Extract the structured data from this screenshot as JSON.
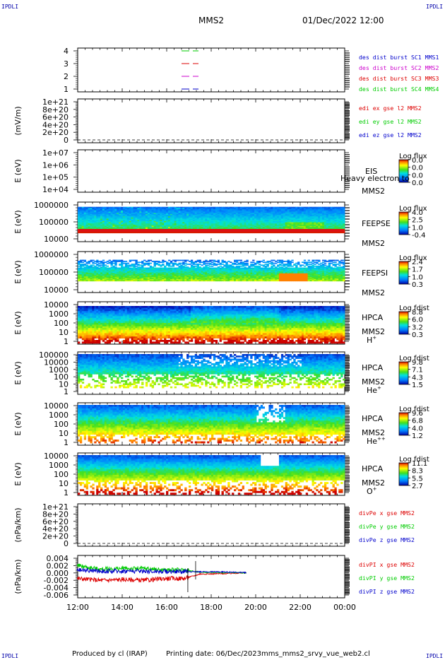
{
  "header": {
    "corner_left_top": "IPDLI",
    "corner_right_top": "IPDLI",
    "corner_left_bottom": "IPDLI",
    "corner_right_bottom": "IPDLI",
    "spacecraft": "MMS2",
    "date": "01/Dec/2022 12:00"
  },
  "footer": {
    "produced_by": "Produced by cl (IRAP)",
    "printing_date": "Printing date: 06/Dec/2023",
    "file": "mms_mms2_srvy_vue_web2.cl"
  },
  "colors": {
    "mms1": "#0000cc",
    "mms2": "#cc00cc",
    "mms3": "#dd0000",
    "mms4": "#00cc00",
    "x_comp": "#dd0000",
    "y_comp": "#00cc00",
    "z_comp": "#0000cc"
  },
  "chart_data": [
    {
      "id": "panel_burst",
      "type": "line",
      "ylabel": "",
      "yticks": [
        "4",
        "3",
        "2",
        "1"
      ],
      "ylim": [
        0.5,
        4.5
      ],
      "legend": [
        {
          "name": "des dist burst SC1 MMS1",
          "color": "#0000cc"
        },
        {
          "name": "des dist burst SC2 MMS2",
          "color": "#cc00cc"
        },
        {
          "name": "des dist burst SC3 MMS3",
          "color": "#dd0000"
        },
        {
          "name": "des dist burst SC4 MMS4",
          "color": "#00cc00"
        }
      ],
      "series": [
        {
          "name": "des dist burst SC4 MMS4",
          "level": 4,
          "x": [
            0,
            0
          ],
          "values": [
            4,
            4
          ]
        },
        {
          "name": "des dist burst SC3 MMS3",
          "level": 3,
          "x": [
            0,
            0
          ],
          "values": [
            3,
            3
          ]
        },
        {
          "name": "des dist burst SC2 MMS2",
          "level": 2,
          "x": [
            0,
            0
          ],
          "values": [
            2,
            2
          ]
        },
        {
          "name": "des dist burst SC1 MMS1",
          "level": 1,
          "x": [
            0,
            0
          ],
          "values": [
            1,
            1
          ]
        }
      ]
    },
    {
      "id": "panel_edi",
      "type": "line",
      "ylabel": "(mV/m)",
      "yticks": [
        "1e+21",
        "8e+20",
        "6e+20",
        "4e+20",
        "2e+20",
        "0"
      ],
      "ylim": [
        0,
        1e+21
      ],
      "legend": [
        {
          "name": "edi ex gse l2 MMS2",
          "color": "#dd0000"
        },
        {
          "name": "edi ey gse l2 MMS2",
          "color": "#00cc00"
        },
        {
          "name": "edi ez gse l2 MMS2",
          "color": "#0000cc"
        }
      ],
      "zero_line": true
    },
    {
      "id": "panel_eis",
      "type": "heatmap",
      "ylabel": "E (eV)",
      "yticks": [
        "1e+07",
        "1e+06",
        "1e+05",
        "1e+04"
      ],
      "ylim": [
        10000,
        10000000
      ],
      "yscale": "log",
      "side_labels": [
        "EIS",
        "MMS2"
      ],
      "overlay_text": "Heavy electron to",
      "colorbar": {
        "title": "Log flux",
        "ticks": [
          "0.0",
          "0.0",
          "0.0",
          "0.0"
        ]
      }
    },
    {
      "id": "panel_feepse",
      "type": "heatmap",
      "ylabel": "E (eV)",
      "yticks": [
        "1000000",
        "100000",
        "10000"
      ],
      "ylim": [
        10000,
        1000000
      ],
      "yscale": "log",
      "side_labels": [
        "FEEPSE",
        "MMS2"
      ],
      "colorbar": {
        "title": "Log flux",
        "ticks": [
          "4.0",
          "2.5",
          "1.0",
          "-0.4"
        ]
      }
    },
    {
      "id": "panel_feepsi",
      "type": "heatmap",
      "ylabel": "E (eV)",
      "yticks": [
        "1000000",
        "100000",
        "10000"
      ],
      "ylim": [
        10000,
        1000000
      ],
      "yscale": "log",
      "side_labels": [
        "FEEPSI",
        "MMS2"
      ],
      "colorbar": {
        "title": "Log flux",
        "ticks": [
          "2.4",
          "1.7",
          "1.0",
          "0.3"
        ]
      }
    },
    {
      "id": "panel_hpca_h",
      "type": "heatmap",
      "ylabel": "E (eV)",
      "yticks": [
        "10000",
        "1000",
        "100",
        "10",
        "1"
      ],
      "ylim": [
        1,
        40000
      ],
      "yscale": "log",
      "side_labels": [
        "HPCA",
        "MMS2"
      ],
      "species": "H",
      "species_sup": "+",
      "colorbar": {
        "title": "Log fdist",
        "ticks": [
          "8.8",
          "6.0",
          "3.2",
          "0.3"
        ]
      }
    },
    {
      "id": "panel_hpca_he",
      "type": "heatmap",
      "ylabel": "E (eV)",
      "yticks": [
        "100000",
        "10000",
        "1000",
        "100",
        "10",
        "1"
      ],
      "ylim": [
        1,
        100000
      ],
      "yscale": "log",
      "side_labels": [
        "HPCA",
        "MMS2"
      ],
      "species": "He",
      "species_sup": "+",
      "colorbar": {
        "title": "Log fdist",
        "ticks": [
          "9.8",
          "7.1",
          "4.3",
          "1.5"
        ]
      }
    },
    {
      "id": "panel_hpca_he2",
      "type": "heatmap",
      "ylabel": "E (eV)",
      "yticks": [
        "10000",
        "1000",
        "100",
        "10",
        "1"
      ],
      "ylim": [
        1,
        40000
      ],
      "yscale": "log",
      "side_labels": [
        "HPCA",
        "MMS2"
      ],
      "species": "He",
      "species_sup": "++",
      "colorbar": {
        "title": "Log fdist",
        "ticks": [
          "9.6",
          "6.8",
          "4.0",
          "1.2"
        ]
      }
    },
    {
      "id": "panel_hpca_o",
      "type": "heatmap",
      "ylabel": "E (eV)",
      "yticks": [
        "10000",
        "1000",
        "100",
        "10",
        "1"
      ],
      "ylim": [
        1,
        40000
      ],
      "yscale": "log",
      "side_labels": [
        "HPCA",
        "MMS2"
      ],
      "species": "O",
      "species_sup": "+",
      "colorbar": {
        "title": "Log fdist",
        "ticks": [
          "11.1",
          "8.3",
          "5.5",
          "2.7"
        ]
      }
    },
    {
      "id": "panel_divpe",
      "type": "line",
      "ylabel": "(nPa/km)",
      "yticks": [
        "1e+21",
        "8e+20",
        "6e+20",
        "4e+20",
        "2e+20",
        "0"
      ],
      "ylim": [
        0,
        1e+21
      ],
      "legend": [
        {
          "name": "divPe x gse MMS2",
          "color": "#dd0000"
        },
        {
          "name": "divPe y gse MMS2",
          "color": "#00cc00"
        },
        {
          "name": "divPe z gse MMS2",
          "color": "#0000cc"
        }
      ],
      "zero_line": true
    },
    {
      "id": "panel_divpi",
      "type": "line",
      "ylabel": "(nPa/km)",
      "yticks": [
        "0.004",
        "0.002",
        "0.000",
        "-0.002",
        "-0.004",
        "-0.006"
      ],
      "ylim": [
        -0.007,
        0.005
      ],
      "legend": [
        {
          "name": "divPI x gse MMS2",
          "color": "#dd0000"
        },
        {
          "name": "divPI y gse MMS2",
          "color": "#00cc00"
        },
        {
          "name": "divPI z gse MMS2",
          "color": "#0000cc"
        }
      ],
      "zero_line": true,
      "series": [
        {
          "name": "divPI x gse MMS2",
          "x": [
            12,
            13,
            14,
            15,
            16,
            16.8,
            17.5,
            18.5,
            19.5
          ],
          "values": [
            -0.0015,
            -0.002,
            -0.0018,
            -0.002,
            -0.0015,
            -0.0015,
            -0.0003,
            -0.0002,
            0
          ]
        },
        {
          "name": "divPI y gse MMS2",
          "x": [
            12,
            13,
            14,
            15,
            16,
            16.8,
            17.5,
            18.5,
            19.5
          ],
          "values": [
            0.002,
            0.001,
            0.0012,
            0.0012,
            0.0008,
            0.0008,
            0.0002,
            0.0001,
            0
          ]
        },
        {
          "name": "divPI z gse MMS2",
          "x": [
            12,
            13,
            14,
            15,
            16,
            16.8,
            17.5,
            18.5,
            19.5
          ],
          "values": [
            0.0008,
            0.0005,
            0.0005,
            0.0005,
            0.0004,
            0.0004,
            0.0003,
            0.0003,
            0.0001
          ]
        }
      ]
    }
  ],
  "time_axis": {
    "range_hours": [
      12,
      24
    ],
    "tick_labels": [
      "12:00",
      "14:00",
      "16:00",
      "18:00",
      "20:00",
      "22:00",
      "00:00"
    ]
  }
}
